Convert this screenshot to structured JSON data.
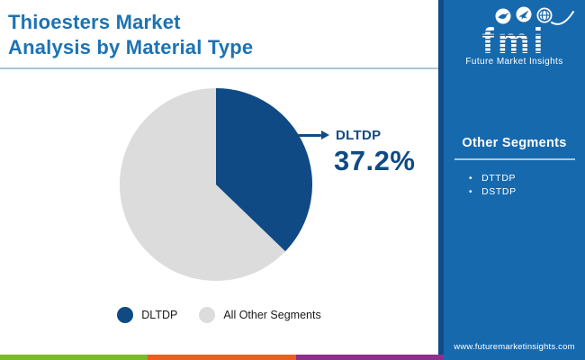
{
  "header": {
    "title_line1": "Thioesters Market",
    "title_line2": "Analysis by Material Type"
  },
  "logo": {
    "text": "fmi",
    "tagline": "Future Market Insights",
    "icons": [
      "bird",
      "plane",
      "globe"
    ]
  },
  "sidebar": {
    "panel_title": "Other Segments",
    "items": [
      {
        "label": "DTTDP"
      },
      {
        "label": "DSTDP"
      }
    ],
    "url": "www.futuremarketinsights.com"
  },
  "callout": {
    "label": "DLTDP",
    "value_text": "37.2%"
  },
  "chart_data": {
    "type": "pie",
    "title": "Thioesters Market Analysis by Material Type",
    "slices": [
      {
        "label": "DLTDP",
        "value": 37.2,
        "color": "#0f4a85"
      },
      {
        "label": "All Other Segments",
        "value": 62.8,
        "color": "#dcdcdc"
      }
    ],
    "start_angle_deg": 0,
    "direction": "clockwise",
    "annotation": {
      "label": "DLTDP",
      "value_text": "37.2%"
    },
    "legend_position": "bottom",
    "other_segments": [
      "DTTDP",
      "DSTDP"
    ]
  },
  "colors": {
    "title": "#1c73b4",
    "divider": "#a9c6db",
    "navy": "#0f4a85",
    "gray": "#dcdcdc",
    "sidebar": "#1769ae",
    "sidebar_edge": "#0f4c86",
    "panel_divider": "#a9c6db",
    "bar_green": "#7ab929",
    "bar_orange": "#eb5e20",
    "bar_purple": "#8e2f8c"
  }
}
